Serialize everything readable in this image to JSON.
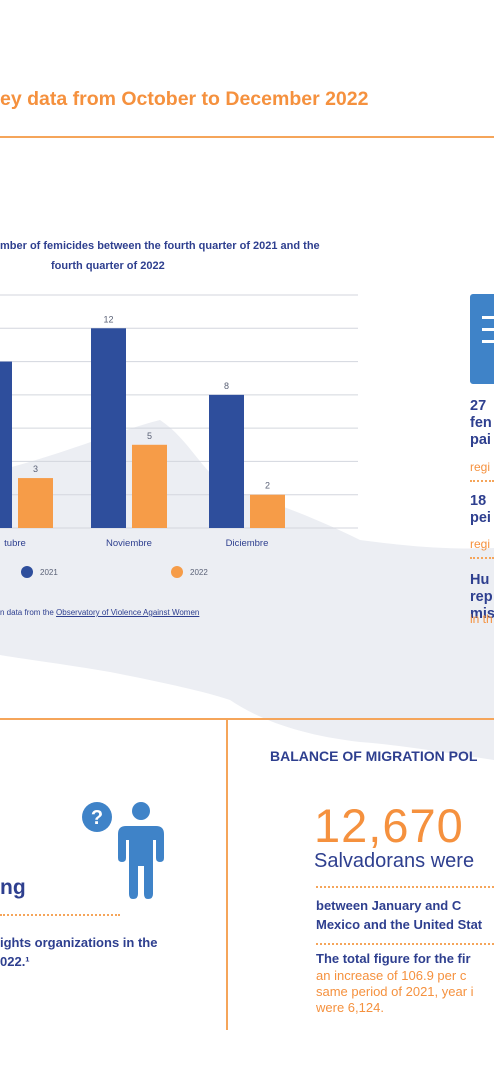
{
  "heading": "ey data from October to December 2022",
  "chart_data": {
    "type": "bar",
    "title_line1": "mber of femicides between the fourth quarter of 2021 and the",
    "title_line2": "fourth quarter of 2022",
    "categories": [
      "tubre",
      "Noviembre",
      "Diciembre"
    ],
    "series": [
      {
        "name": "2021",
        "values": [
          10,
          12,
          8
        ],
        "color": "#2e4e9c"
      },
      {
        "name": "2022",
        "values": [
          3,
          5,
          2
        ],
        "color": "#f69c48"
      }
    ],
    "data_labels": [
      {
        "series": 0,
        "index": 1,
        "text": "12"
      },
      {
        "series": 0,
        "index": 2,
        "text": "8"
      },
      {
        "series": 1,
        "index": 0,
        "text": "3"
      },
      {
        "series": 1,
        "index": 1,
        "text": "5"
      },
      {
        "series": 1,
        "index": 2,
        "text": "2"
      }
    ],
    "ylim": [
      0,
      14
    ],
    "grid": true,
    "legend": "bottom",
    "source_prefix": "n data from the ",
    "source_link": "Observatory of Violence Against Women"
  },
  "stats": [
    {
      "line1": "27",
      "line2": "fen",
      "line3": "pai",
      "sub": "regi"
    },
    {
      "line1": "18",
      "line2": "pei",
      "sub": "regi"
    },
    {
      "line1": "Hu",
      "line2": "rep",
      "line3": "mis",
      "sub": "in th"
    }
  ],
  "left_panel": {
    "word": "ng",
    "body_line1": "ights organizations in the",
    "body_line2": "022.¹"
  },
  "migration": {
    "title": "BALANCE OF MIGRATION POL",
    "number": "12,670",
    "subtitle": "Salvadorans were",
    "para1_line1": "between January and C",
    "para1_line2": "Mexico and the United Stat",
    "para2_line1": "The total figure for the fir",
    "para2_line2": "an increase of 106.9 per c",
    "para2_line3": "same period of 2021, year i",
    "para2_line4": "were 6,124."
  },
  "colors": {
    "accent_orange": "#f5913e",
    "navy": "#2e3f8f",
    "bar_2021": "#2e4e9c",
    "bar_2022": "#f69c48",
    "icon_blue": "#3f83c8",
    "map_gray": "#eceef3"
  },
  "icons": [
    "question-person-icon",
    "list-document-icon"
  ]
}
